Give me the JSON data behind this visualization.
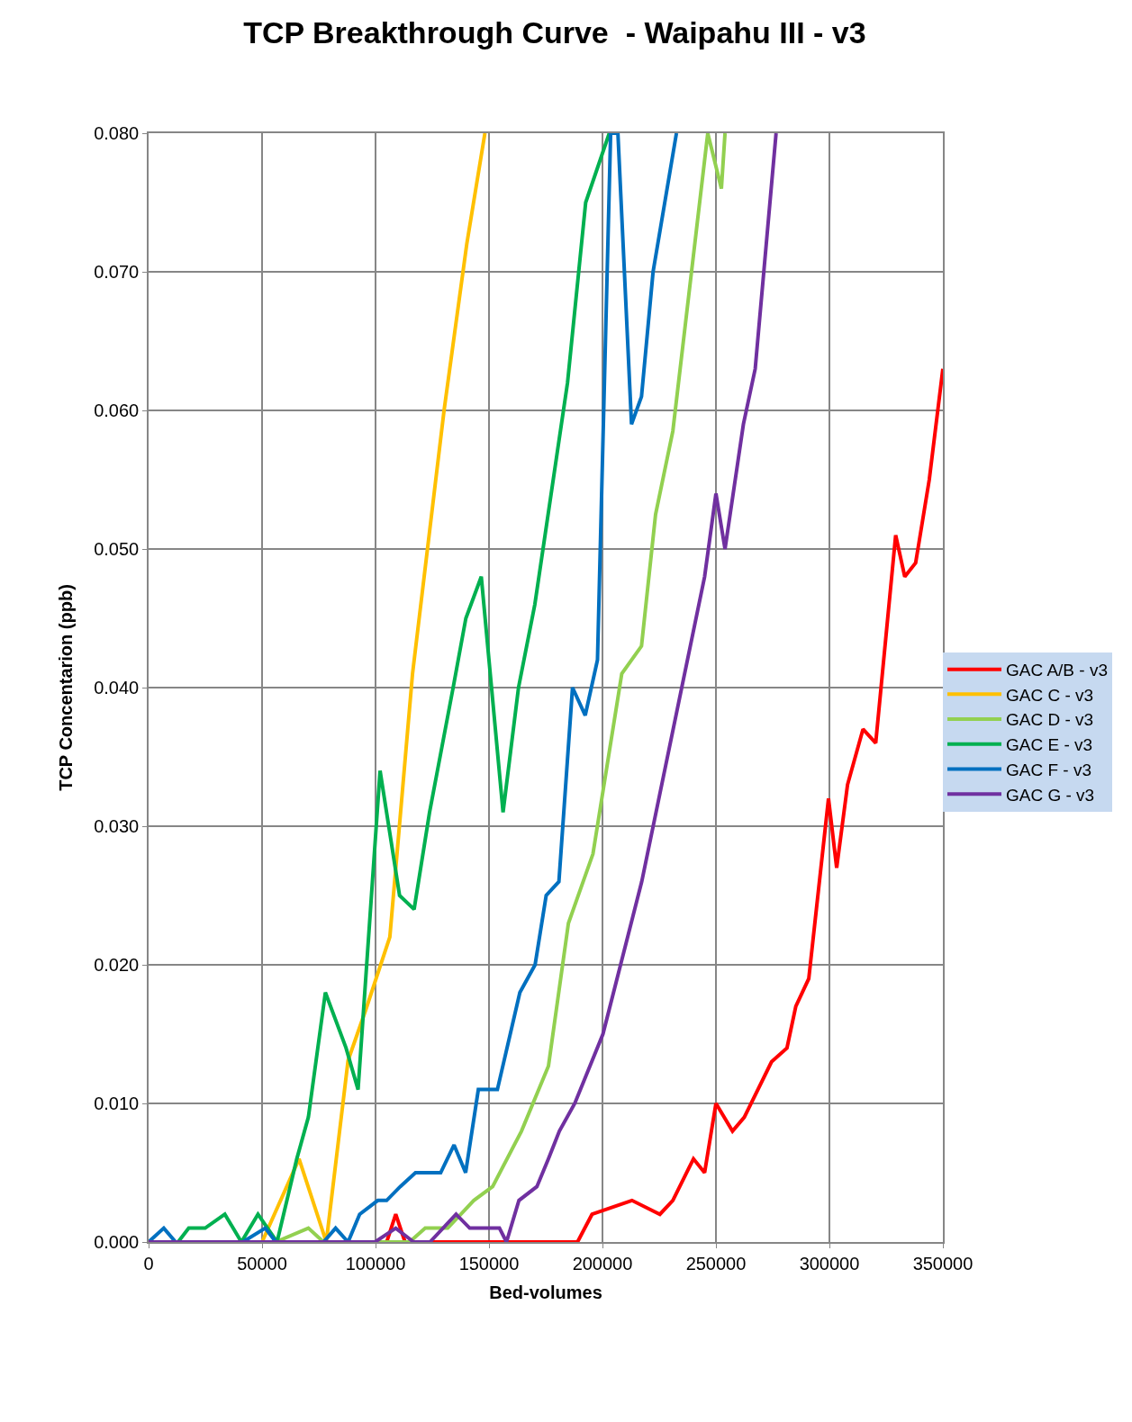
{
  "chart_data": {
    "type": "line",
    "title": "TCP Breakthrough Curve  - Waipahu III - v3",
    "xlabel": "Bed-volumes",
    "ylabel": "TCP Concentarion (ppb)",
    "xlim": [
      0,
      350000
    ],
    "xticks": [
      0,
      50000,
      100000,
      150000,
      200000,
      250000,
      300000,
      350000
    ],
    "ylim": [
      0,
      0.08
    ],
    "yticks": [
      {
        "value": 0,
        "label": "0.000"
      },
      {
        "value": 0.01,
        "label": "0.010"
      },
      {
        "value": 0.02,
        "label": "0.020"
      },
      {
        "value": 0.03,
        "label": "0.030"
      },
      {
        "value": 0.04,
        "label": "0.040"
      },
      {
        "value": 0.05,
        "label": "0.050"
      },
      {
        "value": 0.06,
        "label": "0.060"
      },
      {
        "value": 0.07,
        "label": "0.070"
      },
      {
        "value": 0.08,
        "label": "0.080"
      }
    ],
    "grid": true,
    "legend": "right",
    "marker": "none",
    "line_style": "solid",
    "series": [
      {
        "name": "GAC A/B - v3",
        "color": "#ff0000",
        "x": [
          0,
          100000,
          104900,
          108900,
          113000,
          116800,
          189000,
          195400,
          213000,
          225300,
          231000,
          240100,
          245000,
          250000,
          257300,
          262500,
          274500,
          281300,
          285200,
          290900,
          299600,
          303200,
          308000,
          314800,
          320400,
          329200,
          333200,
          338000,
          344000,
          350000
        ],
        "values": [
          0,
          0,
          0,
          0.002,
          0,
          0,
          0,
          0.002,
          0.003,
          0.002,
          0.003,
          0.006,
          0.005,
          0.01,
          0.008,
          0.009,
          0.013,
          0.014,
          0.017,
          0.019,
          0.032,
          0.027,
          0.033,
          0.037,
          0.036,
          0.051,
          0.048,
          0.049,
          0.055,
          0.063
        ]
      },
      {
        "name": "GAC C - v3",
        "color": "#ffc000",
        "x": [
          0,
          50000,
          66300,
          78300,
          87900,
          95800,
          106300,
          116300,
          130200,
          140200,
          148200
        ],
        "values": [
          0,
          0,
          0.006,
          0,
          0.0131,
          0.0168,
          0.022,
          0.041,
          0.06,
          0.072,
          0.08
        ]
      },
      {
        "name": "GAC D - v3",
        "color": "#92d050",
        "x": [
          0,
          56000,
          70400,
          77100,
          100000,
          115000,
          121900,
          131800,
          143300,
          151600,
          164300,
          176200,
          185000,
          195800,
          208500,
          217200,
          223400,
          231000,
          246400,
          252400,
          254000
        ],
        "values": [
          0,
          0,
          0.001,
          0,
          0,
          0,
          0.001,
          0.001,
          0.003,
          0.004,
          0.008,
          0.0127,
          0.023,
          0.028,
          0.041,
          0.043,
          0.0525,
          0.0585,
          0.08,
          0.076,
          0.08
        ]
      },
      {
        "name": "GAC E - v3",
        "color": "#00b050",
        "x": [
          0,
          13000,
          17700,
          24900,
          33600,
          40900,
          48200,
          56600,
          65300,
          70400,
          77900,
          87000,
          92300,
          102000,
          110600,
          117000,
          123800,
          134200,
          139800,
          146600,
          156200,
          163000,
          170200,
          184600,
          192600,
          203000
        ],
        "values": [
          0,
          0,
          0.001,
          0.001,
          0.002,
          0,
          0.002,
          0,
          0.006,
          0.009,
          0.018,
          0.014,
          0.011,
          0.034,
          0.025,
          0.024,
          0.031,
          0.04,
          0.045,
          0.048,
          0.031,
          0.04,
          0.046,
          0.062,
          0.075,
          0.08
        ]
      },
      {
        "name": "GAC F - v3",
        "color": "#0070c0",
        "x": [
          0,
          6700,
          11900,
          41500,
          51400,
          56100,
          77100,
          82400,
          87900,
          93000,
          101000,
          104900,
          110900,
          117600,
          128700,
          134600,
          139700,
          145300,
          153700,
          163600,
          170300,
          175200,
          180800,
          186800,
          192400,
          197800,
          203600,
          206800,
          212800,
          217200,
          222300,
          232600
        ],
        "values": [
          0,
          0.001,
          0,
          0,
          0.001,
          0,
          0,
          0.001,
          0,
          0.002,
          0.003,
          0.003,
          0.004,
          0.005,
          0.005,
          0.007,
          0.005,
          0.011,
          0.011,
          0.018,
          0.02,
          0.025,
          0.026,
          0.04,
          0.038,
          0.042,
          0.08,
          0.08,
          0.059,
          0.061,
          0.07,
          0.08
        ]
      },
      {
        "name": "GAC G - v3",
        "color": "#7030a0",
        "x": [
          0,
          99800,
          108900,
          116800,
          124000,
          135500,
          141500,
          154600,
          157700,
          163200,
          171100,
          176200,
          181000,
          187800,
          200200,
          217300,
          245000,
          250000,
          254000,
          262100,
          267300,
          276500
        ],
        "values": [
          0,
          0,
          0.001,
          0,
          0,
          0.002,
          0.001,
          0.001,
          0,
          0.003,
          0.004,
          0.006,
          0.008,
          0.01,
          0.015,
          0.026,
          0.048,
          0.054,
          0.05,
          0.059,
          0.063,
          0.08
        ]
      }
    ]
  }
}
